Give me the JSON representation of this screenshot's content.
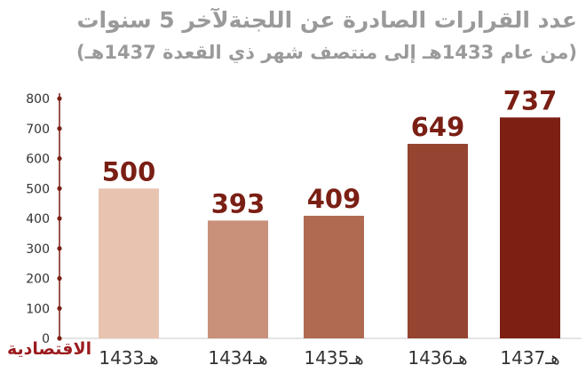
{
  "title_line1": "عدد القرارات الصادرة عن اللجنةلآخر 5 سنوات",
  "title_line2": "(من عام 1433هـ إلى منتصف شهر ذي القعدة  1437هـ)",
  "logo_text": "الاقتصادية",
  "chart_data": {
    "type": "bar",
    "categories": [
      "1433هـ",
      "1434هـ",
      "1435هـ",
      "1436هـ",
      "1437هـ"
    ],
    "values": [
      500,
      393,
      409,
      649,
      737
    ],
    "data_labels": [
      "500",
      "393",
      "409",
      "649",
      "737"
    ],
    "yticks": [
      "0",
      "100",
      "200",
      "300",
      "400",
      "500",
      "600",
      "700",
      "800"
    ],
    "ylim": [
      0,
      800
    ],
    "grid": false,
    "bar_colors": [
      "#e8c4b0",
      "#c9917a",
      "#b06a52",
      "#944431",
      "#7d2013"
    ],
    "label_color": "#7a1f14",
    "axis_color": "#7a1f14",
    "title": "عدد القرارات الصادرة عن اللجنةلآخر 5 سنوات",
    "xlabel": "",
    "ylabel": ""
  }
}
